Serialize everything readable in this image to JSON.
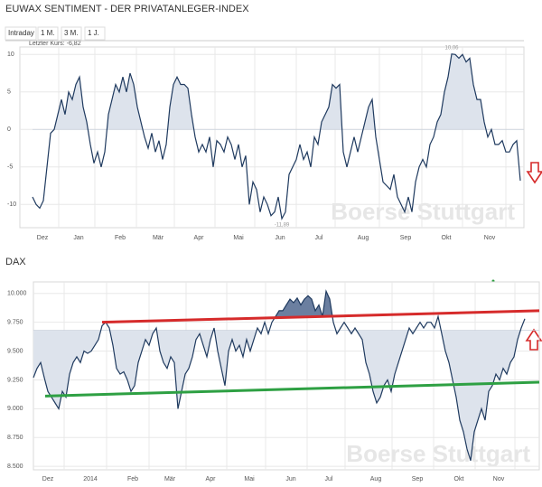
{
  "chart_data": [
    {
      "type": "line",
      "title": "EUWAX SENTIMENT - DER PRIVATANLEGER-INDEX",
      "tabs": [
        "Intraday",
        "1 M.",
        "3 M.",
        "1 J."
      ],
      "last_price": "Letzter Kurs: -6,82",
      "watermark": "Boerse Stuttgart",
      "xlim": [
        0,
        136
      ],
      "xticks": [
        {
          "value": 2.75,
          "label": "Dez"
        },
        {
          "value": 12.75,
          "label": "Jan"
        },
        {
          "value": 24.25,
          "label": "Feb"
        },
        {
          "value": 34.75,
          "label": "Mär"
        },
        {
          "value": 46,
          "label": "Apr"
        },
        {
          "value": 57,
          "label": "Mai"
        },
        {
          "value": 68.5,
          "label": "Jun"
        },
        {
          "value": 79.25,
          "label": "Jul"
        },
        {
          "value": 91.5,
          "label": "Aug"
        },
        {
          "value": 103.25,
          "label": "Sep"
        },
        {
          "value": 114.5,
          "label": "Okt"
        },
        {
          "value": 126.5,
          "label": "Nov"
        }
      ],
      "ylim": [
        -13.1,
        11
      ],
      "yticks": [
        10,
        5,
        0,
        -5,
        -10
      ],
      "grid": true,
      "baseline": 0,
      "fill": "above",
      "fill_color": "#dde3ec",
      "series": [
        {
          "name": "EUWAX Sentiment",
          "color": "#1f3a5f",
          "values": [
            -9,
            -10,
            -10.5,
            -9.5,
            -5,
            -0.5,
            0,
            2,
            4,
            2,
            5,
            4,
            6,
            7,
            3,
            1,
            -2,
            -4.5,
            -3,
            -5,
            -3,
            2,
            4,
            6,
            5,
            7,
            5,
            7.5,
            6,
            3,
            1,
            -1,
            -2.5,
            -0.5,
            -3,
            -1.5,
            -4,
            -2,
            3,
            6,
            7,
            6,
            6,
            5.5,
            2,
            -1,
            -3,
            -2,
            -3,
            -1,
            -5,
            -1.5,
            -2,
            -3,
            -1,
            -2,
            -4,
            -2,
            -5,
            -3.5,
            -10,
            -7,
            -8,
            -11,
            -9,
            -10,
            -11.5,
            -11,
            -9,
            -11.89,
            -11,
            -6,
            -5,
            -4,
            -2,
            -4,
            -3,
            -5,
            -1,
            -2,
            1,
            2,
            3,
            6,
            5.5,
            6,
            -3,
            -5,
            -3,
            -1,
            -3,
            -1,
            1,
            3,
            4,
            -1,
            -4,
            -7,
            -7.5,
            -8,
            -6,
            -9,
            -10,
            -11,
            -9,
            -11,
            -7,
            -5,
            -4,
            -5,
            -2,
            -1,
            1,
            2,
            5,
            7,
            10.06,
            10,
            9.5,
            10,
            9,
            9.5,
            6,
            4,
            4,
            1,
            -1,
            0,
            -2,
            -2,
            -1.5,
            -3,
            -3,
            -2,
            -1.5,
            -6.82
          ]
        }
      ],
      "annotations": [
        {
          "text": "10,06",
          "x": 116,
          "y": 10.06,
          "position": "above"
        },
        {
          "text": "-11,89",
          "x": 69,
          "y": -11.89,
          "position": "below"
        }
      ]
    },
    {
      "type": "line",
      "title": "DAX",
      "watermark": "Boerse Stuttgart",
      "xlim": [
        0,
        140
      ],
      "xticks": [
        {
          "value": 4,
          "label": "Dez"
        },
        {
          "value": 15.75,
          "label": "2014"
        },
        {
          "value": 27.5,
          "label": "Feb"
        },
        {
          "value": 37.75,
          "label": "Mär"
        },
        {
          "value": 49,
          "label": "Apr"
        },
        {
          "value": 59.75,
          "label": "Mai"
        },
        {
          "value": 71.25,
          "label": "Jun"
        },
        {
          "value": 81.75,
          "label": "Jul"
        },
        {
          "value": 94.75,
          "label": "Aug"
        },
        {
          "value": 106.25,
          "label": "Sep"
        },
        {
          "value": 117.75,
          "label": "Okt"
        },
        {
          "value": 128.75,
          "label": "Nov"
        }
      ],
      "ylim": [
        8470,
        10100
      ],
      "yticks": [
        {
          "value": 10000,
          "label": "10.000"
        },
        {
          "value": 9750,
          "label": "9.750"
        },
        {
          "value": 9500,
          "label": "9.500"
        },
        {
          "value": 9250,
          "label": "9.250"
        },
        {
          "value": 9000,
          "label": "9.000"
        },
        {
          "value": 8750,
          "label": "8.750"
        },
        {
          "value": 8500,
          "label": "8.500"
        }
      ],
      "grid": true,
      "baseline": 9680,
      "fill": "below",
      "fill_color": "#dde3ec",
      "series": [
        {
          "name": "DAX",
          "color": "#1f3a5f",
          "values": [
            9270,
            9350,
            9400,
            9270,
            9150,
            9100,
            9050,
            9000,
            9150,
            9100,
            9300,
            9400,
            9450,
            9400,
            9500,
            9480,
            9500,
            9550,
            9600,
            9720,
            9750,
            9700,
            9550,
            9350,
            9300,
            9320,
            9250,
            9150,
            9200,
            9400,
            9500,
            9600,
            9550,
            9650,
            9700,
            9500,
            9400,
            9350,
            9450,
            9400,
            9000,
            9150,
            9300,
            9350,
            9450,
            9600,
            9650,
            9550,
            9450,
            9600,
            9700,
            9500,
            9350,
            9200,
            9500,
            9600,
            9500,
            9550,
            9450,
            9600,
            9500,
            9600,
            9700,
            9650,
            9750,
            9650,
            9750,
            9800,
            9850,
            9850,
            9900,
            9950,
            9920,
            9960,
            9900,
            9950,
            9980,
            9950,
            9850,
            9900,
            9800,
            10020,
            9950,
            9750,
            9650,
            9700,
            9750,
            9700,
            9650,
            9700,
            9650,
            9600,
            9400,
            9300,
            9150,
            9050,
            9100,
            9200,
            9250,
            9150,
            9300,
            9400,
            9500,
            9600,
            9700,
            9650,
            9700,
            9750,
            9700,
            9750,
            9750,
            9700,
            9800,
            9650,
            9500,
            9400,
            9250,
            9100,
            8900,
            8800,
            8650,
            8550,
            8800,
            8900,
            9000,
            8900,
            9150,
            9200,
            9300,
            9250,
            9350,
            9300,
            9400,
            9450,
            9600,
            9700,
            9780
          ]
        }
      ],
      "trendlines": [
        {
          "color": "#d62b2b",
          "x": [
            19,
            140
          ],
          "y": [
            9750,
            9850
          ],
          "fill_color": "#6b7fa0"
        },
        {
          "color": "#2ea043",
          "x": [
            3.25,
            140
          ],
          "y": [
            9110,
            9230
          ]
        }
      ]
    }
  ]
}
